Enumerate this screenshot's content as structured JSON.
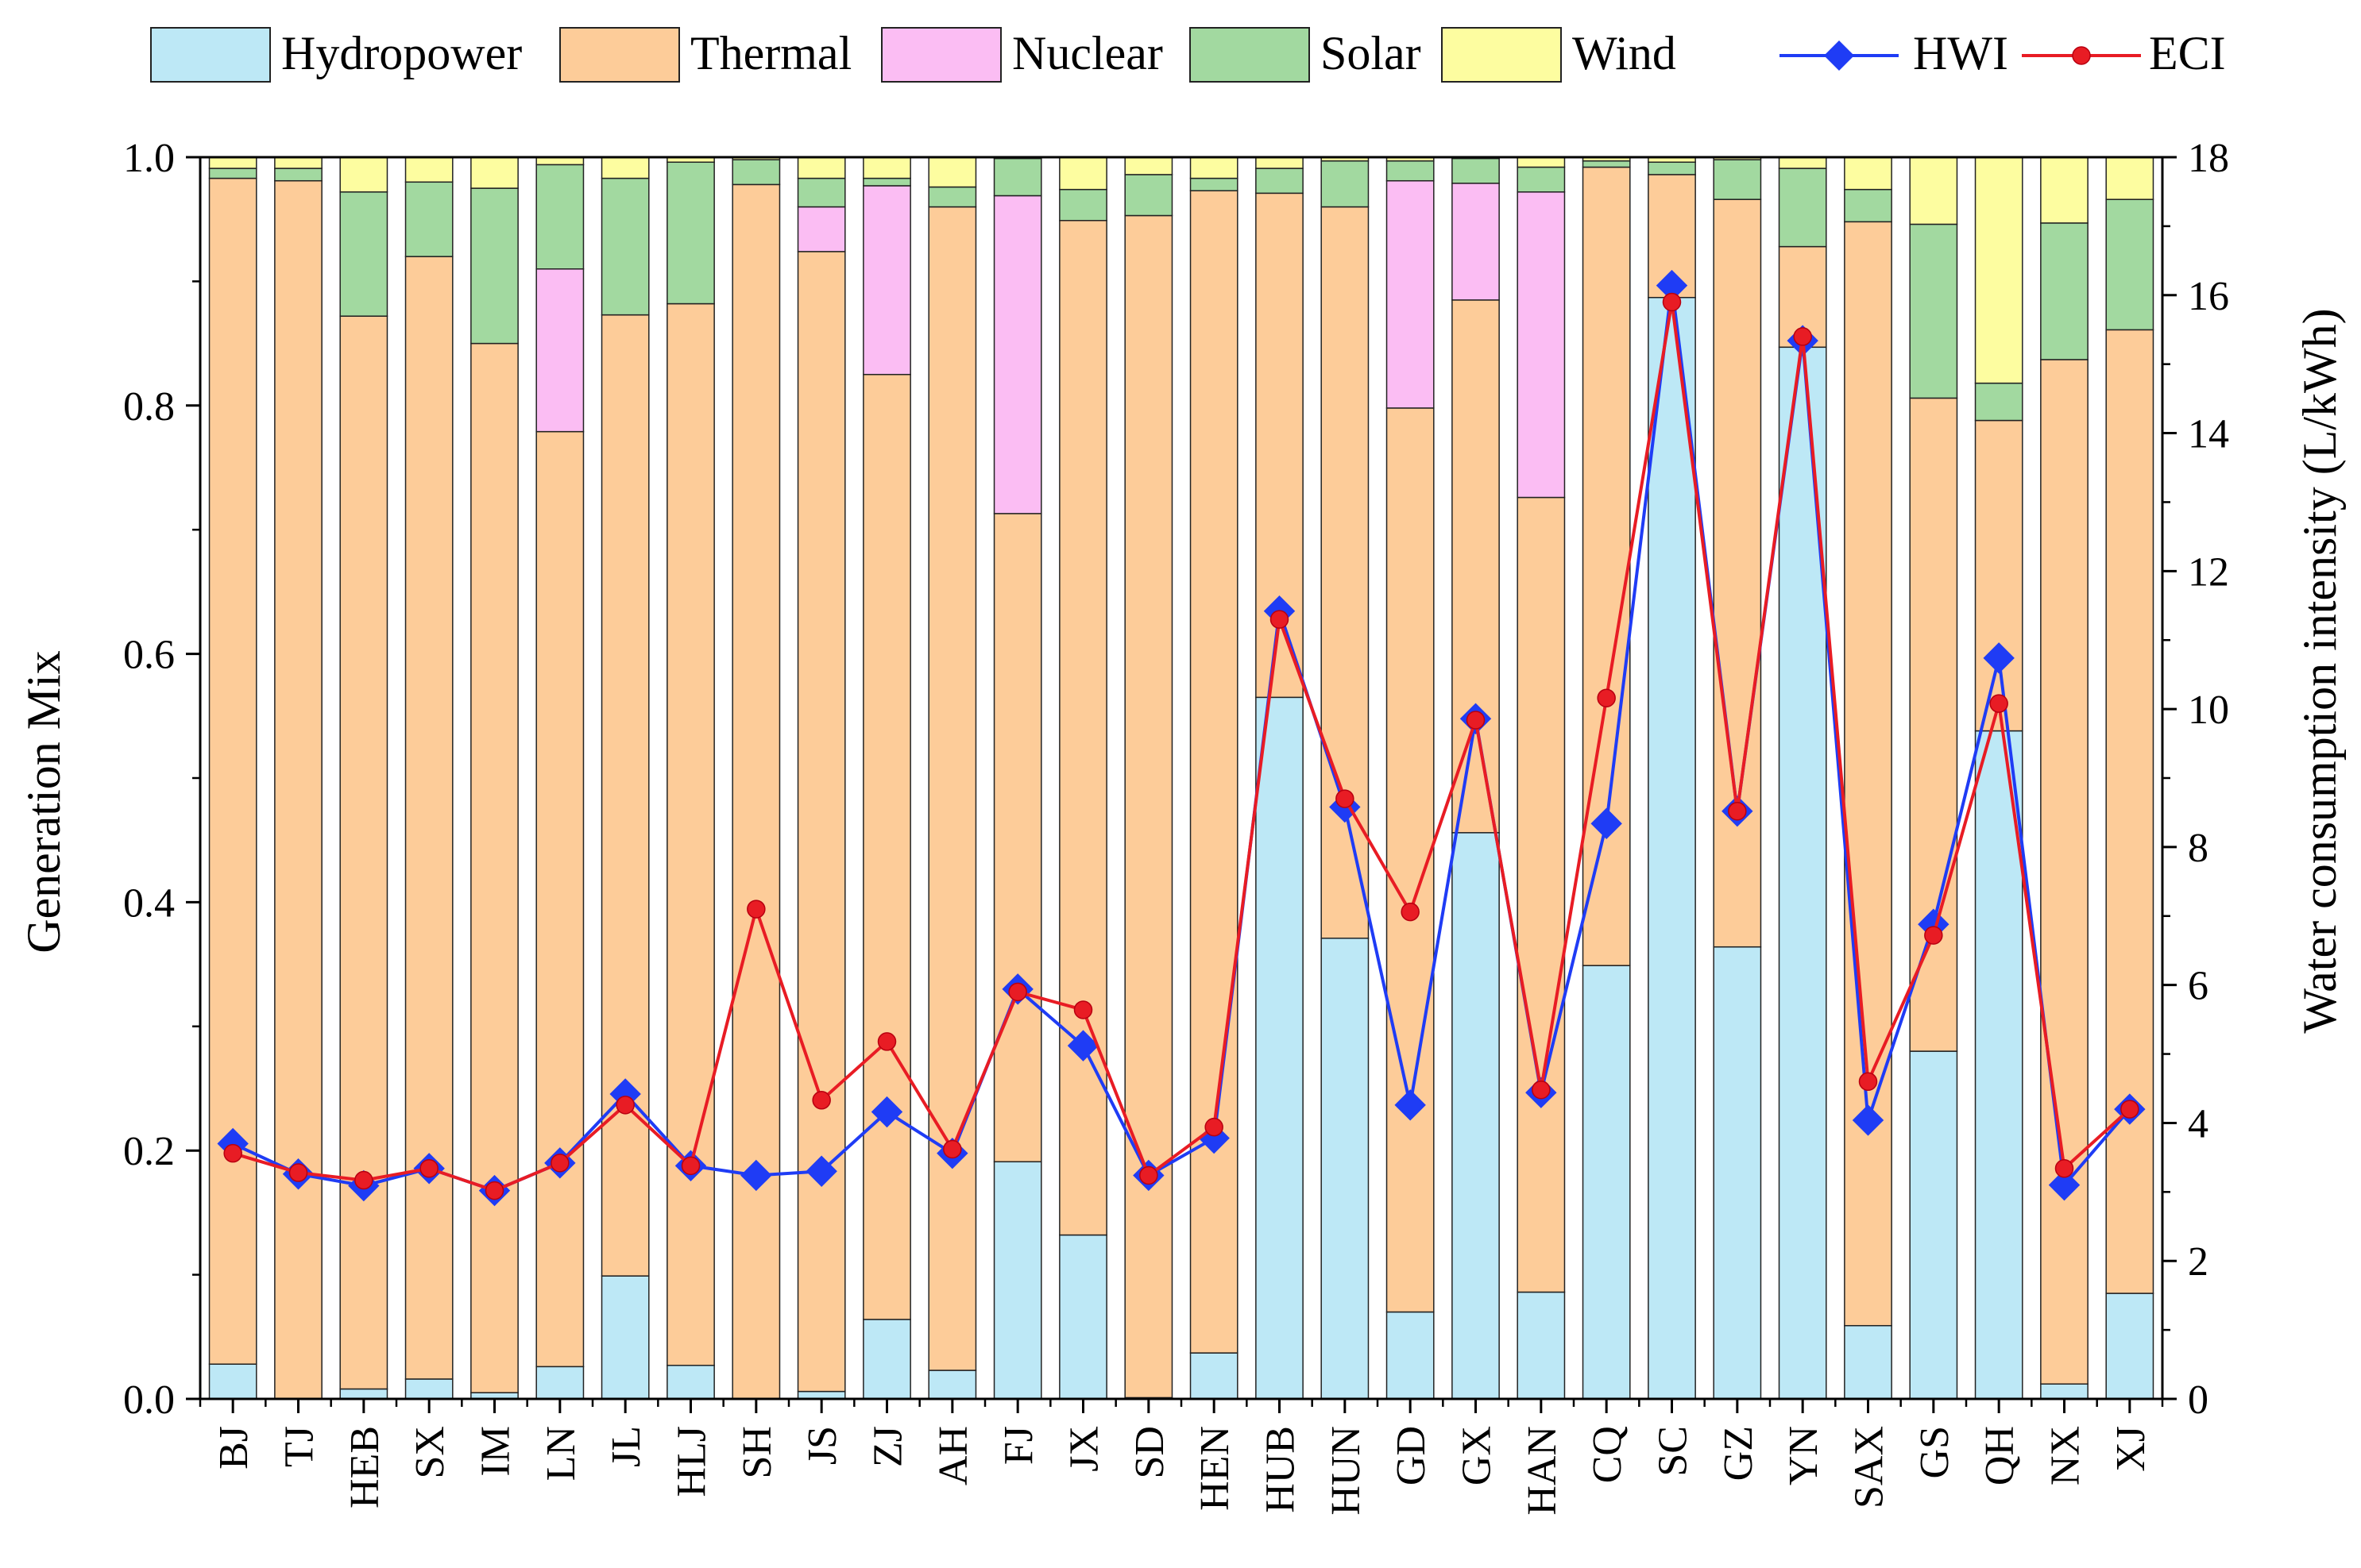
{
  "chart_data": {
    "type": "bar",
    "stacked": true,
    "categories": [
      "BJ",
      "TJ",
      "HEB",
      "SX",
      "IM",
      "LN",
      "JL",
      "HLJ",
      "SH",
      "JS",
      "ZJ",
      "AH",
      "FJ",
      "JX",
      "SD",
      "HEN",
      "HUB",
      "HUN",
      "GD",
      "GX",
      "HAN",
      "CQ",
      "SC",
      "GZ",
      "YN",
      "SAX",
      "GS",
      "QH",
      "NX",
      "XJ"
    ],
    "series": [
      {
        "name": "Hydropower",
        "color": "#bde8f6",
        "values": [
          0.028,
          0.0,
          0.008,
          0.016,
          0.005,
          0.026,
          0.099,
          0.027,
          0.0,
          0.006,
          0.064,
          0.023,
          0.191,
          0.132,
          0.001,
          0.037,
          0.565,
          0.371,
          0.07,
          0.456,
          0.086,
          0.349,
          0.887,
          0.364,
          0.847,
          0.059,
          0.28,
          0.538,
          0.012,
          0.085
        ]
      },
      {
        "name": "Thermal",
        "color": "#fdcc99",
        "values": [
          0.955,
          0.981,
          0.864,
          0.904,
          0.845,
          0.753,
          0.774,
          0.855,
          0.978,
          0.918,
          0.761,
          0.937,
          0.522,
          0.817,
          0.952,
          0.936,
          0.406,
          0.589,
          0.728,
          0.429,
          0.64,
          0.643,
          0.099,
          0.602,
          0.081,
          0.889,
          0.526,
          0.25,
          0.825,
          0.776
        ]
      },
      {
        "name": "Nuclear",
        "color": "#fbbdf3",
        "values": [
          0.0,
          0.0,
          0.0,
          0.0,
          0.0,
          0.131,
          0.0,
          0.0,
          0.0,
          0.036,
          0.152,
          0.0,
          0.256,
          0.0,
          0.0,
          0.0,
          0.0,
          0.0,
          0.183,
          0.094,
          0.246,
          0.0,
          0.0,
          0.0,
          0.0,
          0.0,
          0.0,
          0.0,
          0.0,
          0.0
        ]
      },
      {
        "name": "Solar",
        "color": "#a2d9a0",
        "values": [
          0.008,
          0.01,
          0.1,
          0.06,
          0.125,
          0.084,
          0.11,
          0.114,
          0.02,
          0.023,
          0.006,
          0.016,
          0.03,
          0.025,
          0.033,
          0.01,
          0.02,
          0.037,
          0.016,
          0.02,
          0.02,
          0.005,
          0.01,
          0.032,
          0.063,
          0.026,
          0.14,
          0.03,
          0.11,
          0.105
        ]
      },
      {
        "name": "Wind",
        "color": "#fdfda0",
        "values": [
          0.009,
          0.009,
          0.028,
          0.02,
          0.025,
          0.006,
          0.017,
          0.004,
          0.002,
          0.017,
          0.017,
          0.024,
          0.001,
          0.026,
          0.014,
          0.017,
          0.009,
          0.003,
          0.003,
          0.001,
          0.008,
          0.003,
          0.004,
          0.002,
          0.009,
          0.026,
          0.054,
          0.182,
          0.053,
          0.034
        ]
      }
    ],
    "lines": [
      {
        "name": "HWI",
        "color": "#1f3cf5",
        "marker": "diamond",
        "axis": "right",
        "values": [
          3.7,
          3.26,
          3.09,
          3.34,
          3.02,
          3.42,
          4.42,
          3.38,
          3.24,
          3.3,
          4.16,
          3.56,
          5.94,
          5.12,
          3.24,
          3.78,
          11.42,
          8.58,
          4.26,
          9.86,
          4.44,
          8.34,
          16.14,
          8.52,
          15.34,
          4.04,
          6.88,
          10.74,
          3.1,
          4.2
        ]
      },
      {
        "name": "ECI",
        "color": "#e81c24",
        "marker": "circle",
        "axis": "right",
        "values": [
          3.56,
          3.28,
          3.17,
          3.34,
          3.02,
          3.42,
          4.26,
          3.38,
          7.1,
          4.33,
          5.18,
          3.62,
          5.9,
          5.64,
          3.24,
          3.94,
          11.3,
          8.7,
          7.06,
          9.84,
          4.48,
          10.16,
          15.9,
          8.52,
          15.4,
          4.6,
          6.72,
          10.08,
          3.34,
          4.2
        ]
      }
    ],
    "ylabel": "Generation Mix",
    "y2label": "Water consumption intensity (L/kWh)",
    "ylim": [
      0,
      1.0
    ],
    "y2lim": [
      0,
      18
    ],
    "yticks": [
      "0.0",
      "0.2",
      "0.4",
      "0.6",
      "0.8",
      "1.0"
    ],
    "y2ticks": [
      "0",
      "2",
      "4",
      "6",
      "8",
      "10",
      "12",
      "14",
      "16",
      "18"
    ],
    "legend_position": "top"
  }
}
